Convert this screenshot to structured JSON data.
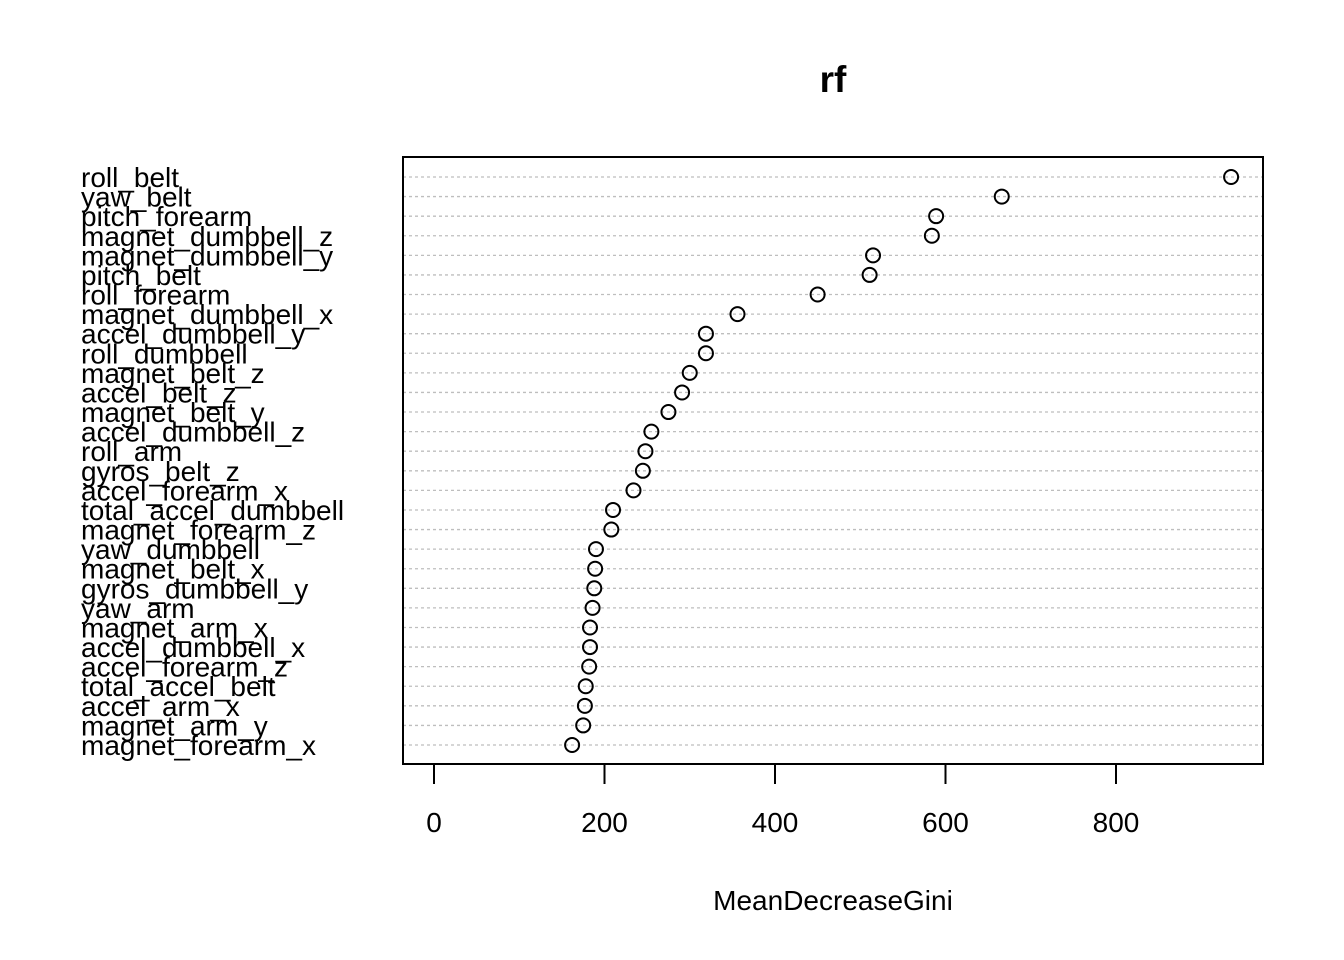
{
  "chart_data": {
    "type": "scatter",
    "subtype": "dotchart",
    "title": "rf",
    "xlabel": "MeanDecreaseGini",
    "ylabel": "",
    "xlim": [
      0,
      950
    ],
    "xticks": [
      0,
      200,
      400,
      600,
      800
    ],
    "grid": "dotted horizontal lines per category",
    "marker": "open circle",
    "colors": {
      "marker": "#000000",
      "grid": "#bebebe",
      "frame": "#000000"
    },
    "categories": [
      "roll_belt",
      "yaw_belt",
      "pitch_forearm",
      "magnet_dumbbell_z",
      "magnet_dumbbell_y",
      "pitch_belt",
      "roll_forearm",
      "magnet_dumbbell_x",
      "accel_dumbbell_y",
      "roll_dumbbell",
      "magnet_belt_z",
      "accel_belt_z",
      "magnet_belt_y",
      "accel_dumbbell_z",
      "roll_arm",
      "gyros_belt_z",
      "accel_forearm_x",
      "total_accel_dumbbell",
      "magnet_forearm_z",
      "yaw_dumbbell",
      "magnet_belt_x",
      "gyros_dumbbell_y",
      "yaw_arm",
      "magnet_arm_x",
      "accel_dumbbell_x",
      "accel_forearm_z",
      "total_accel_belt",
      "accel_arm_x",
      "magnet_arm_y",
      "magnet_forearm_x"
    ],
    "values": [
      935,
      666,
      589,
      584,
      515,
      511,
      450,
      356,
      319,
      319,
      300,
      291,
      275,
      255,
      248,
      245,
      234,
      210,
      208,
      190,
      189,
      188,
      186,
      183,
      183,
      182,
      178,
      177,
      175,
      162
    ]
  }
}
